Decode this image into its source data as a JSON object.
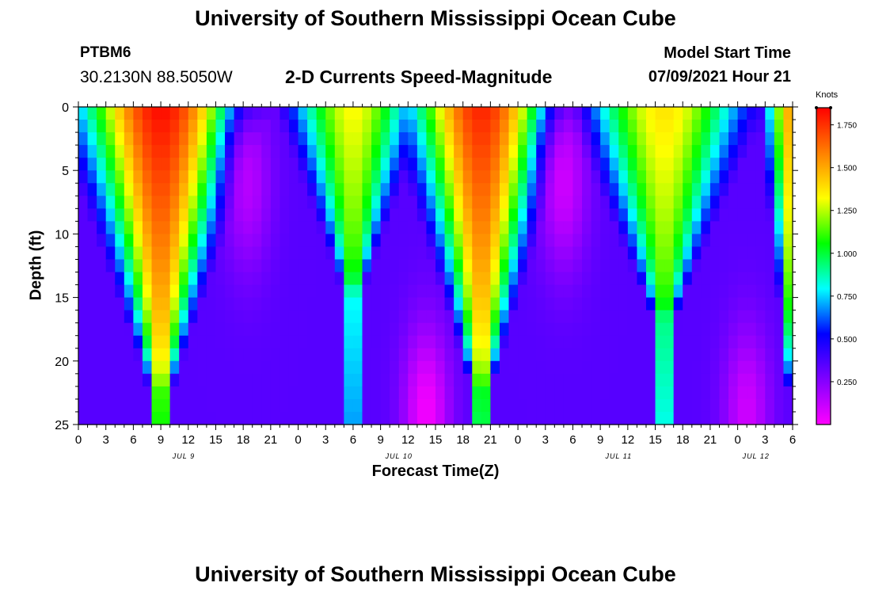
{
  "header": {
    "title": "University of Southern Mississippi Ocean Cube",
    "station_id": "PTBM6",
    "coordinates": "30.2130N  88.5050W",
    "subtitle": "2-D Currents Speed-Magnitude",
    "model_start_label": "Model Start Time",
    "model_start_value": "07/09/2021 Hour 21"
  },
  "footer": {
    "title": "University of Southern Mississippi Ocean Cube"
  },
  "chart_data": {
    "type": "heatmap",
    "title": "2-D Currents Speed-Magnitude",
    "xlabel": "Forecast Time(Z)",
    "ylabel": "Depth (ft)",
    "y_axis": {
      "ticks": [
        0,
        5,
        10,
        15,
        20,
        25
      ],
      "range": [
        0,
        25
      ],
      "inverted": true
    },
    "x_axis": {
      "range_hours": [
        0,
        78
      ],
      "ticks": [
        "0",
        "3",
        "6",
        "9",
        "12",
        "15",
        "18",
        "21",
        "0",
        "3",
        "6",
        "9",
        "12",
        "15",
        "18",
        "21",
        "0",
        "3",
        "6",
        "9",
        "12",
        "15",
        "18",
        "21",
        "0",
        "3",
        "6"
      ],
      "date_labels": [
        {
          "label": "JUL 9",
          "at_hour": 11.5
        },
        {
          "label": "JUL 10",
          "at_hour": 35
        },
        {
          "label": "JUL 11",
          "at_hour": 59
        },
        {
          "label": "JUL 12",
          "at_hour": 74
        }
      ]
    },
    "colorbar": {
      "unit": "Knots",
      "ticks": [
        "1.750",
        "1.500",
        "1.250",
        "1.000",
        "0.750",
        "0.500",
        "0.250"
      ],
      "tick_values": [
        1.75,
        1.5,
        1.25,
        1.0,
        0.75,
        0.5,
        0.25
      ],
      "range": [
        0,
        1.85
      ],
      "colors": [
        "#ff00ff",
        "#8000ff",
        "#0000ff",
        "#00ffff",
        "#00ff00",
        "#ffff00",
        "#ff8000",
        "#ff0000"
      ]
    },
    "features": [
      {
        "kind": "high",
        "center_hour": 9,
        "surface_knots": 1.8,
        "half_width_hours": 9,
        "penetration_ft": 24
      },
      {
        "kind": "low",
        "center_hour": 18.5,
        "depth_ft": 6,
        "min_knots": 0.15
      },
      {
        "kind": "high",
        "center_hour": 30,
        "surface_knots": 1.3,
        "half_width_hours": 7,
        "penetration_ft": 16
      },
      {
        "kind": "low",
        "center_hour": 38,
        "depth_ft": 24,
        "min_knots": 0.02
      },
      {
        "kind": "high",
        "center_hour": 44,
        "surface_knots": 1.75,
        "half_width_hours": 8,
        "penetration_ft": 24
      },
      {
        "kind": "low",
        "center_hour": 53,
        "depth_ft": 6,
        "min_knots": 0.1
      },
      {
        "kind": "high",
        "center_hour": 64,
        "surface_knots": 1.35,
        "half_width_hours": 9,
        "penetration_ft": 18
      },
      {
        "kind": "low",
        "center_hour": 73,
        "depth_ft": 24,
        "min_knots": 0.1
      },
      {
        "kind": "high",
        "center_hour": 78,
        "surface_knots": 1.5,
        "half_width_hours": 3,
        "penetration_ft": 25
      }
    ]
  }
}
